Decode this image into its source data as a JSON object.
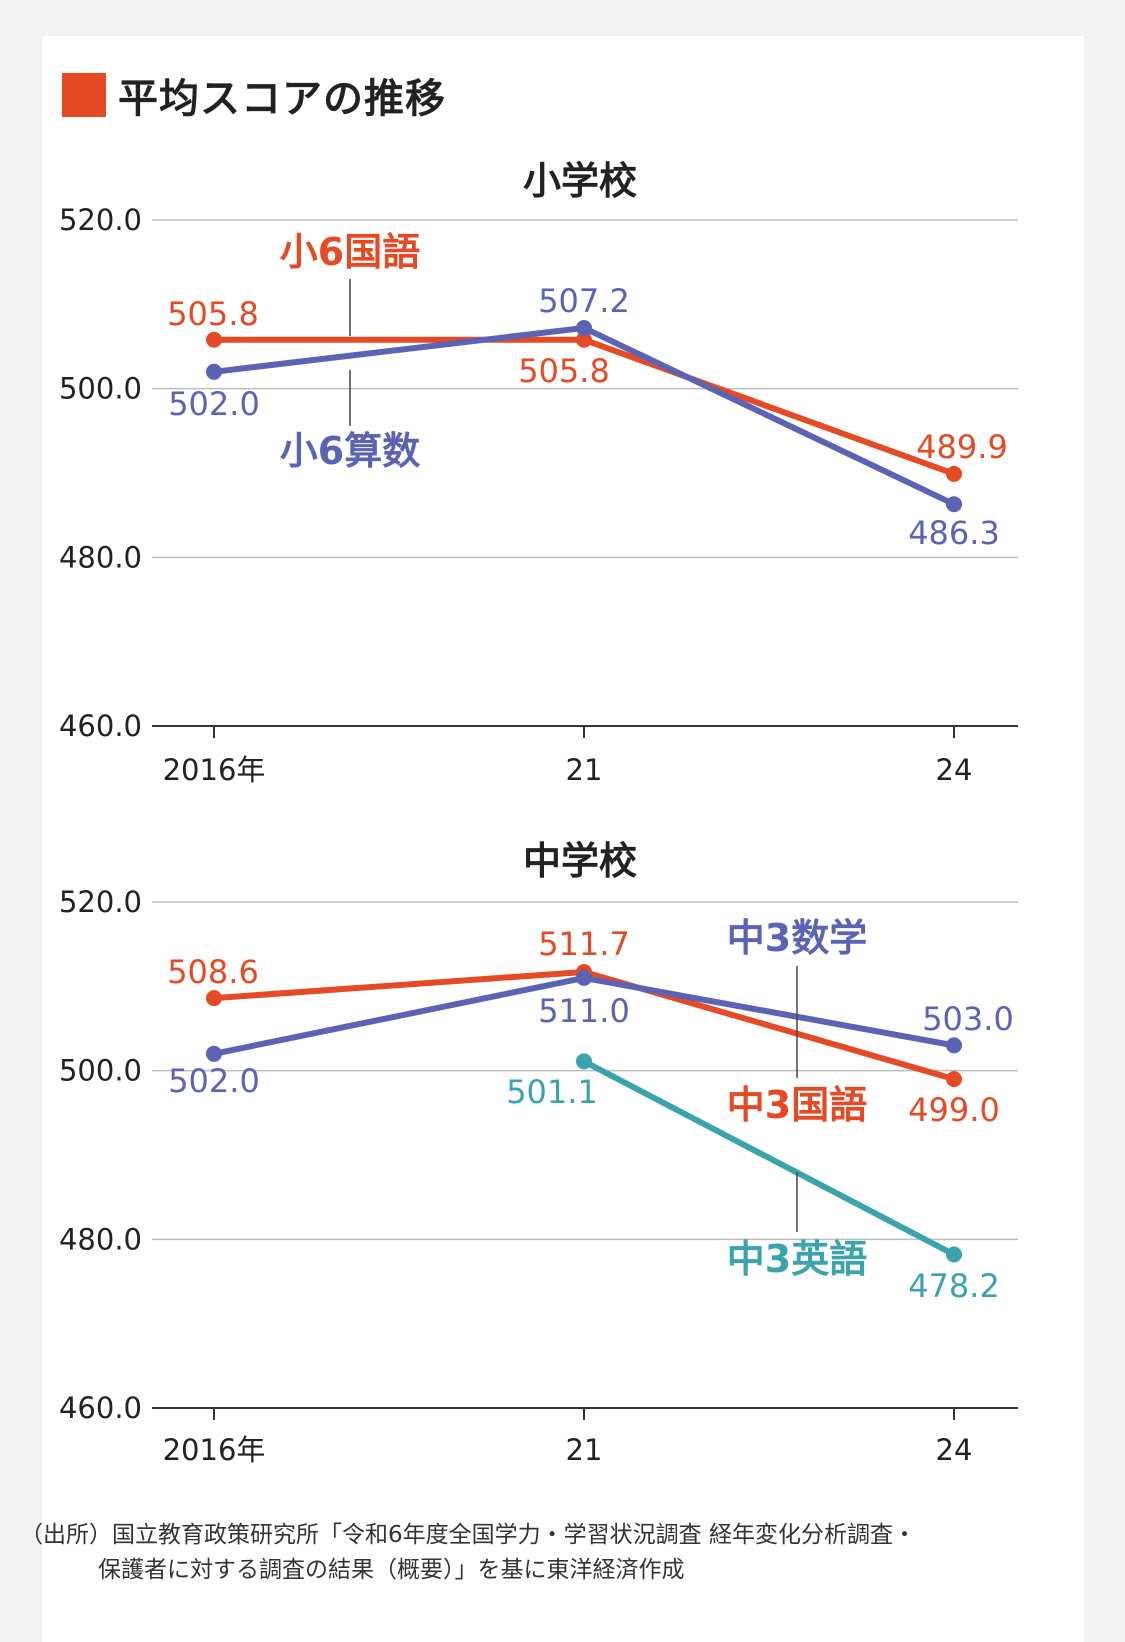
{
  "title": "平均スコアの推移",
  "colors": {
    "accent": "#e64a25",
    "red": "#e64a25",
    "blue": "#5b63b5",
    "teal": "#3aa3ad",
    "grid": "#bdbdbd",
    "axis": "#333333"
  },
  "source": {
    "line1": "（出所）国立教育政策研究所「令和6年度全国学力・学習状況調査 経年変化分析調査・",
    "line2": "保護者に対する調査の結果（概要）」を基に東洋経済作成"
  },
  "chart_data": [
    {
      "type": "line",
      "title": "小学校",
      "categories": [
        "2016年",
        "21",
        "24"
      ],
      "y_ticks": [
        "520.0",
        "500.0",
        "480.0",
        "460.0"
      ],
      "ylim": [
        460,
        520
      ],
      "grid": true,
      "series": [
        {
          "name": "小6国語",
          "color": "red",
          "values": [
            505.8,
            505.8,
            489.9
          ],
          "labels": [
            "505.8",
            "505.8",
            "489.9"
          ]
        },
        {
          "name": "小6算数",
          "color": "blue",
          "values": [
            502.0,
            507.2,
            486.3
          ],
          "labels": [
            "502.0",
            "507.2",
            "486.3"
          ]
        }
      ]
    },
    {
      "type": "line",
      "title": "中学校",
      "categories": [
        "2016年",
        "21",
        "24"
      ],
      "y_ticks": [
        "520.0",
        "500.0",
        "480.0",
        "460.0"
      ],
      "ylim": [
        460,
        520
      ],
      "grid": true,
      "series": [
        {
          "name": "中3国語",
          "color": "red",
          "values": [
            508.6,
            511.7,
            499.0
          ],
          "labels": [
            "508.6",
            "511.7",
            "499.0"
          ]
        },
        {
          "name": "中3数学",
          "color": "blue",
          "values": [
            502.0,
            511.0,
            503.0
          ],
          "labels": [
            "502.0",
            "511.0",
            "503.0"
          ]
        },
        {
          "name": "中3英語",
          "color": "teal",
          "values": [
            null,
            501.1,
            478.2
          ],
          "labels": [
            "",
            "501.1",
            "478.2"
          ]
        }
      ]
    }
  ]
}
